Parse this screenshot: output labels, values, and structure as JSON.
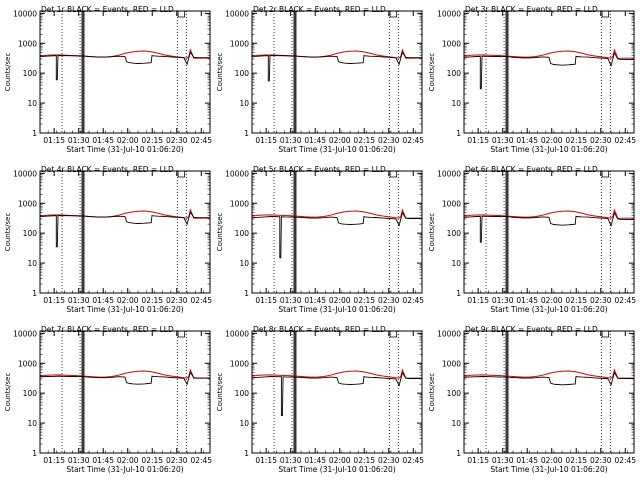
{
  "chart_data": {
    "type": "line",
    "layout": "3x3 grid of small panels",
    "y_scale": "log",
    "ylim": [
      1,
      12000
    ],
    "y_ticks": [
      1,
      10,
      100,
      1000,
      10000
    ],
    "y_tick_labels": [
      "1",
      "10",
      "100",
      "1000",
      "10000"
    ],
    "ylabel": "Counts/sec",
    "xlabel": "Start Time (31-Jul-10 01:06:20)",
    "x_units": "minutes after 01:06:20",
    "xlim": [
      0,
      104
    ],
    "x_ticks": [
      8.67,
      23.67,
      38.67,
      53.67,
      68.67,
      83.67,
      98.67
    ],
    "x_tick_labels": [
      "01:15",
      "01:30",
      "01:45",
      "02:00",
      "02:15",
      "02:30",
      "02:45"
    ],
    "series_legend_text": "BLACK = Events, RED = LLD",
    "series_colors": {
      "events": "#000000",
      "lld": "#e00000"
    },
    "grid": "off",
    "dotted_vertical_lines_x": [
      13.5,
      24.5,
      84.0,
      89.5
    ],
    "solid_vertical_lines_x": [
      25.8,
      26.8
    ],
    "marker_bracket_x": [
      84.5,
      88.5
    ],
    "lld": {
      "x": [
        0,
        4,
        8,
        12,
        16,
        20,
        24,
        25,
        26,
        27,
        28,
        32,
        36,
        40,
        44,
        48,
        52,
        56,
        60,
        64,
        68,
        72,
        76,
        80,
        84,
        86,
        88,
        90,
        91,
        92,
        93,
        94,
        96,
        100,
        104
      ],
      "y": [
        370,
        395,
        405,
        410,
        400,
        390,
        380,
        380,
        380,
        375,
        370,
        355,
        345,
        345,
        360,
        400,
        460,
        510,
        540,
        550,
        520,
        470,
        410,
        375,
        350,
        340,
        330,
        320,
        360,
        600,
        450,
        320,
        315,
        320,
        320
      ]
    },
    "panels": [
      {
        "title": "Det 1r",
        "events": {
          "x": [
            0,
            4,
            8,
            10,
            10,
            10.6,
            11,
            12,
            16,
            20,
            24,
            25,
            26,
            27,
            28,
            32,
            36,
            40,
            44,
            48,
            52,
            53,
            55,
            57,
            60,
            64,
            66,
            68,
            68.5,
            69,
            72,
            76,
            80,
            84,
            86,
            88,
            90,
            92,
            94,
            96,
            100,
            104
          ],
          "y": [
            360,
            370,
            380,
            385,
            60,
            60,
            385,
            390,
            385,
            380,
            375,
            378,
            380,
            375,
            370,
            355,
            345,
            345,
            355,
            370,
            360,
            240,
            225,
            215,
            210,
            215,
            220,
            225,
            390,
            380,
            370,
            365,
            350,
            340,
            335,
            330,
            200,
            500,
            340,
            330,
            330,
            330
          ]
        }
      },
      {
        "title": "Det 2r",
        "events": {
          "x": [
            0,
            4,
            8,
            10,
            10,
            10.6,
            11,
            12,
            16,
            20,
            24,
            25,
            26,
            27,
            28,
            32,
            36,
            40,
            44,
            48,
            52,
            53,
            55,
            57,
            60,
            64,
            66,
            68,
            68.5,
            69,
            72,
            76,
            80,
            84,
            86,
            88,
            90,
            92,
            94,
            96,
            100,
            104
          ],
          "y": [
            360,
            370,
            380,
            385,
            55,
            55,
            385,
            390,
            385,
            380,
            375,
            378,
            380,
            375,
            370,
            355,
            345,
            345,
            355,
            370,
            360,
            240,
            225,
            215,
            210,
            215,
            220,
            225,
            390,
            380,
            370,
            365,
            350,
            340,
            335,
            330,
            200,
            500,
            340,
            330,
            330,
            330
          ]
        }
      },
      {
        "title": "Det 3r",
        "events": {
          "x": [
            0,
            4,
            8,
            10,
            10,
            10.6,
            11,
            12,
            16,
            20,
            24,
            25,
            26,
            27,
            28,
            32,
            36,
            40,
            44,
            48,
            52,
            53,
            55,
            57,
            60,
            64,
            66,
            68,
            68.5,
            69,
            72,
            76,
            80,
            84,
            86,
            88,
            90,
            92,
            94,
            96,
            100,
            104
          ],
          "y": [
            340,
            350,
            360,
            365,
            30,
            30,
            365,
            370,
            365,
            360,
            355,
            358,
            360,
            355,
            350,
            335,
            325,
            325,
            335,
            350,
            340,
            210,
            195,
            190,
            185,
            190,
            195,
            200,
            370,
            360,
            350,
            345,
            330,
            320,
            315,
            310,
            180,
            480,
            300,
            290,
            290,
            290
          ]
        }
      },
      {
        "title": "Det 4r",
        "events": {
          "x": [
            0,
            4,
            8,
            10,
            10,
            10.6,
            11,
            12,
            16,
            20,
            24,
            25,
            26,
            27,
            28,
            32,
            36,
            40,
            44,
            48,
            52,
            53,
            55,
            57,
            60,
            64,
            66,
            68,
            68.5,
            69,
            72,
            76,
            80,
            84,
            86,
            88,
            90,
            92,
            94,
            96,
            100,
            104
          ],
          "y": [
            360,
            370,
            380,
            385,
            35,
            35,
            385,
            390,
            385,
            380,
            375,
            378,
            380,
            375,
            370,
            355,
            345,
            345,
            355,
            370,
            360,
            240,
            225,
            215,
            210,
            215,
            220,
            225,
            390,
            380,
            370,
            365,
            350,
            340,
            335,
            330,
            200,
            500,
            340,
            330,
            330,
            330
          ]
        }
      },
      {
        "title": "Det 5r",
        "events": {
          "x": [
            0,
            4,
            8,
            12,
            16,
            17,
            17,
            17.6,
            18,
            20,
            24,
            25,
            26,
            27,
            28,
            32,
            36,
            40,
            44,
            48,
            52,
            53,
            55,
            57,
            60,
            64,
            66,
            68,
            68.5,
            69,
            72,
            76,
            80,
            84,
            86,
            88,
            90,
            92,
            94,
            96,
            100,
            104
          ],
          "y": [
            330,
            340,
            350,
            360,
            355,
            355,
            15,
            15,
            355,
            350,
            345,
            348,
            350,
            345,
            340,
            330,
            320,
            320,
            330,
            345,
            335,
            220,
            205,
            200,
            195,
            200,
            205,
            210,
            360,
            350,
            340,
            335,
            320,
            310,
            305,
            300,
            180,
            480,
            320,
            310,
            310,
            310
          ]
        }
      },
      {
        "title": "Det 6r",
        "events": {
          "x": [
            0,
            4,
            8,
            10,
            10,
            10.6,
            11,
            12,
            16,
            20,
            24,
            25,
            26,
            27,
            28,
            32,
            36,
            40,
            44,
            48,
            52,
            53,
            55,
            57,
            60,
            64,
            66,
            68,
            68.5,
            69,
            72,
            76,
            80,
            84,
            86,
            88,
            90,
            92,
            94,
            96,
            100,
            104
          ],
          "y": [
            340,
            350,
            360,
            365,
            50,
            50,
            365,
            370,
            365,
            360,
            355,
            358,
            360,
            355,
            350,
            335,
            325,
            325,
            335,
            350,
            340,
            210,
            195,
            190,
            185,
            190,
            195,
            200,
            370,
            360,
            350,
            345,
            330,
            320,
            315,
            310,
            180,
            480,
            300,
            290,
            290,
            290
          ]
        }
      },
      {
        "title": "Det 7r",
        "events": {
          "x": [
            0,
            4,
            8,
            12,
            16,
            20,
            24,
            25,
            26,
            27,
            28,
            32,
            36,
            40,
            44,
            48,
            52,
            53,
            55,
            57,
            60,
            64,
            66,
            68,
            68.5,
            69,
            72,
            76,
            80,
            84,
            86,
            88,
            90,
            92,
            94,
            96,
            100,
            104
          ],
          "y": [
            350,
            360,
            365,
            370,
            365,
            360,
            355,
            358,
            360,
            355,
            350,
            340,
            330,
            330,
            340,
            355,
            345,
            225,
            210,
            205,
            200,
            205,
            210,
            215,
            375,
            365,
            355,
            350,
            335,
            325,
            320,
            315,
            200,
            500,
            330,
            320,
            320,
            320
          ]
        }
      },
      {
        "title": "Det 8r",
        "events": {
          "x": [
            0,
            4,
            8,
            12,
            16,
            18,
            18,
            18.6,
            19,
            20,
            24,
            25,
            26,
            27,
            28,
            32,
            36,
            40,
            44,
            48,
            52,
            53,
            55,
            57,
            60,
            64,
            66,
            68,
            68.5,
            69,
            72,
            76,
            80,
            84,
            86,
            88,
            90,
            92,
            94,
            96,
            100,
            104
          ],
          "y": [
            330,
            340,
            350,
            360,
            355,
            355,
            18,
            18,
            355,
            350,
            345,
            348,
            350,
            345,
            340,
            330,
            320,
            320,
            330,
            345,
            335,
            220,
            205,
            200,
            195,
            200,
            205,
            210,
            360,
            350,
            340,
            335,
            320,
            310,
            305,
            300,
            180,
            480,
            320,
            310,
            310,
            310
          ]
        }
      },
      {
        "title": "Det 9r",
        "events": {
          "x": [
            0,
            4,
            8,
            12,
            16,
            20,
            24,
            25,
            26,
            27,
            28,
            32,
            36,
            40,
            44,
            48,
            52,
            53,
            55,
            57,
            60,
            64,
            66,
            68,
            68.5,
            69,
            72,
            76,
            80,
            84,
            86,
            88,
            90,
            92,
            94,
            96,
            100,
            104
          ],
          "y": [
            340,
            350,
            355,
            360,
            355,
            350,
            345,
            348,
            350,
            345,
            340,
            330,
            320,
            320,
            330,
            345,
            335,
            215,
            200,
            195,
            190,
            195,
            200,
            205,
            365,
            355,
            345,
            340,
            325,
            315,
            310,
            305,
            190,
            490,
            320,
            310,
            310,
            310
          ]
        }
      }
    ]
  }
}
